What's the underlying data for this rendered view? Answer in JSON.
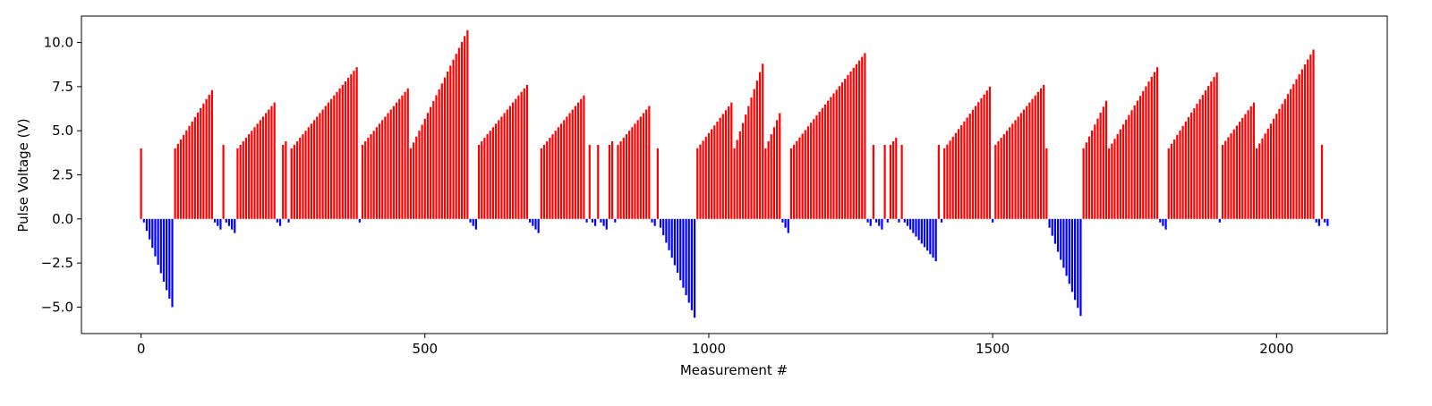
{
  "chart_data": {
    "type": "bar",
    "title": "",
    "xlabel": "Measurement #",
    "ylabel": "Pulse Voltage (V)",
    "xlim": [
      -105,
      2195
    ],
    "ylim": [
      -6.5,
      11.5
    ],
    "x_ticks": [
      0,
      500,
      1000,
      1500,
      2000
    ],
    "y_ticks": [
      -5.0,
      -2.5,
      0.0,
      2.5,
      5.0,
      7.5,
      10.0
    ],
    "x_tick_labels": [
      "0",
      "500",
      "1000",
      "1500",
      "2000"
    ],
    "y_tick_labels": [
      "−5.0",
      "−2.5",
      "0.0",
      "2.5",
      "5.0",
      "7.5",
      "10.0"
    ],
    "grid": false,
    "colors": {
      "positive": "#ff0000",
      "negative": "#0000ff",
      "axes": "#000000",
      "background": "#ffffff"
    },
    "bar_segments": [
      {
        "name": "pos-01",
        "x_start": 0,
        "x_end": 0,
        "step": 5,
        "v_start": 4.0,
        "v_end": 4.0
      },
      {
        "name": "neg-01",
        "x_start": 5,
        "x_end": 55,
        "step": 5,
        "v_start": -0.2,
        "v_end": -5.0
      },
      {
        "name": "pos-02",
        "x_start": 60,
        "x_end": 125,
        "step": 5,
        "v_start": 4.0,
        "v_end": 7.3
      },
      {
        "name": "neg-02",
        "x_start": 130,
        "x_end": 140,
        "step": 5,
        "v_start": -0.2,
        "v_end": -0.6
      },
      {
        "name": "pos-03",
        "x_start": 145,
        "x_end": 145,
        "step": 5,
        "v_start": 4.2,
        "v_end": 4.2
      },
      {
        "name": "neg-03",
        "x_start": 150,
        "x_end": 165,
        "step": 5,
        "v_start": -0.2,
        "v_end": -0.8
      },
      {
        "name": "pos-04",
        "x_start": 170,
        "x_end": 235,
        "step": 5,
        "v_start": 4.0,
        "v_end": 6.6
      },
      {
        "name": "neg-04",
        "x_start": 240,
        "x_end": 245,
        "step": 5,
        "v_start": -0.2,
        "v_end": -0.4
      },
      {
        "name": "pos-05",
        "x_start": 250,
        "x_end": 255,
        "step": 5,
        "v_start": 4.2,
        "v_end": 4.4
      },
      {
        "name": "neg-05",
        "x_start": 260,
        "x_end": 260,
        "step": 5,
        "v_start": -0.2,
        "v_end": -0.2
      },
      {
        "name": "pos-06",
        "x_start": 265,
        "x_end": 380,
        "step": 5,
        "v_start": 4.0,
        "v_end": 8.6
      },
      {
        "name": "neg-06",
        "x_start": 385,
        "x_end": 385,
        "step": 5,
        "v_start": -0.2,
        "v_end": -0.2
      },
      {
        "name": "pos-07",
        "x_start": 390,
        "x_end": 470,
        "step": 5,
        "v_start": 4.2,
        "v_end": 7.4
      },
      {
        "name": "pos-08",
        "x_start": 475,
        "x_end": 575,
        "step": 5,
        "v_start": 4.0,
        "v_end": 10.7
      },
      {
        "name": "neg-07",
        "x_start": 580,
        "x_end": 590,
        "step": 5,
        "v_start": -0.2,
        "v_end": -0.6
      },
      {
        "name": "pos-09",
        "x_start": 595,
        "x_end": 680,
        "step": 5,
        "v_start": 4.2,
        "v_end": 7.6
      },
      {
        "name": "neg-08",
        "x_start": 685,
        "x_end": 700,
        "step": 5,
        "v_start": -0.2,
        "v_end": -0.8
      },
      {
        "name": "pos-10",
        "x_start": 705,
        "x_end": 780,
        "step": 5,
        "v_start": 4.0,
        "v_end": 7.0
      },
      {
        "name": "neg-09",
        "x_start": 785,
        "x_end": 785,
        "step": 5,
        "v_start": -0.2,
        "v_end": -0.2
      },
      {
        "name": "pos-11",
        "x_start": 790,
        "x_end": 790,
        "step": 5,
        "v_start": 4.2,
        "v_end": 4.2
      },
      {
        "name": "neg-10",
        "x_start": 795,
        "x_end": 800,
        "step": 5,
        "v_start": -0.2,
        "v_end": -0.4
      },
      {
        "name": "pos-12",
        "x_start": 805,
        "x_end": 805,
        "step": 5,
        "v_start": 4.2,
        "v_end": 4.2
      },
      {
        "name": "neg-11",
        "x_start": 810,
        "x_end": 820,
        "step": 5,
        "v_start": -0.2,
        "v_end": -0.6
      },
      {
        "name": "pos-13",
        "x_start": 825,
        "x_end": 830,
        "step": 5,
        "v_start": 4.2,
        "v_end": 4.4
      },
      {
        "name": "neg-12",
        "x_start": 835,
        "x_end": 835,
        "step": 5,
        "v_start": -0.2,
        "v_end": -0.2
      },
      {
        "name": "pos-14",
        "x_start": 840,
        "x_end": 895,
        "step": 5,
        "v_start": 4.2,
        "v_end": 6.4
      },
      {
        "name": "neg-13",
        "x_start": 900,
        "x_end": 905,
        "step": 5,
        "v_start": -0.2,
        "v_end": -0.4
      },
      {
        "name": "pos-15",
        "x_start": 910,
        "x_end": 910,
        "step": 5,
        "v_start": 4.0,
        "v_end": 4.0
      },
      {
        "name": "neg-14",
        "x_start": 915,
        "x_end": 975,
        "step": 5,
        "v_start": -0.5,
        "v_end": -5.6
      },
      {
        "name": "pos-16",
        "x_start": 980,
        "x_end": 1040,
        "step": 5,
        "v_start": 4.0,
        "v_end": 6.6
      },
      {
        "name": "pos-17",
        "x_start": 1045,
        "x_end": 1095,
        "step": 5,
        "v_start": 4.0,
        "v_end": 8.8
      },
      {
        "name": "pos-18",
        "x_start": 1100,
        "x_end": 1125,
        "step": 5,
        "v_start": 4.0,
        "v_end": 6.0
      },
      {
        "name": "neg-15",
        "x_start": 1130,
        "x_end": 1140,
        "step": 5,
        "v_start": -0.2,
        "v_end": -0.8
      },
      {
        "name": "pos-19",
        "x_start": 1145,
        "x_end": 1275,
        "step": 5,
        "v_start": 4.0,
        "v_end": 9.4
      },
      {
        "name": "neg-16",
        "x_start": 1280,
        "x_end": 1285,
        "step": 5,
        "v_start": -0.2,
        "v_end": -0.4
      },
      {
        "name": "pos-20",
        "x_start": 1290,
        "x_end": 1290,
        "step": 5,
        "v_start": 4.2,
        "v_end": 4.2
      },
      {
        "name": "neg-17",
        "x_start": 1295,
        "x_end": 1305,
        "step": 5,
        "v_start": -0.2,
        "v_end": -0.6
      },
      {
        "name": "pos-21",
        "x_start": 1310,
        "x_end": 1310,
        "step": 5,
        "v_start": 4.2,
        "v_end": 4.2
      },
      {
        "name": "neg-18",
        "x_start": 1315,
        "x_end": 1315,
        "step": 5,
        "v_start": -0.2,
        "v_end": -0.2
      },
      {
        "name": "pos-22",
        "x_start": 1320,
        "x_end": 1330,
        "step": 5,
        "v_start": 4.2,
        "v_end": 4.6
      },
      {
        "name": "neg-19",
        "x_start": 1335,
        "x_end": 1335,
        "step": 5,
        "v_start": -0.2,
        "v_end": -0.2
      },
      {
        "name": "pos-23",
        "x_start": 1340,
        "x_end": 1340,
        "step": 5,
        "v_start": 4.2,
        "v_end": 4.2
      },
      {
        "name": "neg-20",
        "x_start": 1345,
        "x_end": 1400,
        "step": 5,
        "v_start": -0.2,
        "v_end": -2.4
      },
      {
        "name": "pos-24",
        "x_start": 1405,
        "x_end": 1405,
        "step": 5,
        "v_start": 4.2,
        "v_end": 4.2
      },
      {
        "name": "neg-21",
        "x_start": 1410,
        "x_end": 1410,
        "step": 5,
        "v_start": -0.2,
        "v_end": -0.2
      },
      {
        "name": "pos-25",
        "x_start": 1415,
        "x_end": 1495,
        "step": 5,
        "v_start": 4.0,
        "v_end": 7.5
      },
      {
        "name": "neg-22",
        "x_start": 1500,
        "x_end": 1500,
        "step": 5,
        "v_start": -0.2,
        "v_end": -0.2
      },
      {
        "name": "pos-26",
        "x_start": 1505,
        "x_end": 1590,
        "step": 5,
        "v_start": 4.2,
        "v_end": 7.6
      },
      {
        "name": "pos-27",
        "x_start": 1595,
        "x_end": 1595,
        "step": 5,
        "v_start": 4.0,
        "v_end": 4.0
      },
      {
        "name": "neg-23",
        "x_start": 1600,
        "x_end": 1655,
        "step": 5,
        "v_start": -0.5,
        "v_end": -5.5
      },
      {
        "name": "pos-28",
        "x_start": 1660,
        "x_end": 1700,
        "step": 5,
        "v_start": 4.0,
        "v_end": 6.7
      },
      {
        "name": "pos-29",
        "x_start": 1705,
        "x_end": 1790,
        "step": 5,
        "v_start": 4.0,
        "v_end": 8.6
      },
      {
        "name": "neg-24",
        "x_start": 1795,
        "x_end": 1805,
        "step": 5,
        "v_start": -0.2,
        "v_end": -0.6
      },
      {
        "name": "pos-30",
        "x_start": 1810,
        "x_end": 1895,
        "step": 5,
        "v_start": 4.0,
        "v_end": 8.3
      },
      {
        "name": "neg-25",
        "x_start": 1900,
        "x_end": 1900,
        "step": 5,
        "v_start": -0.2,
        "v_end": -0.2
      },
      {
        "name": "pos-31",
        "x_start": 1905,
        "x_end": 1960,
        "step": 5,
        "v_start": 4.2,
        "v_end": 6.6
      },
      {
        "name": "pos-32",
        "x_start": 1965,
        "x_end": 2065,
        "step": 5,
        "v_start": 4.0,
        "v_end": 9.6
      },
      {
        "name": "neg-26",
        "x_start": 2070,
        "x_end": 2075,
        "step": 5,
        "v_start": -0.2,
        "v_end": -0.4
      },
      {
        "name": "pos-33",
        "x_start": 2080,
        "x_end": 2080,
        "step": 5,
        "v_start": 4.2,
        "v_end": 4.2
      },
      {
        "name": "neg-27",
        "x_start": 2085,
        "x_end": 2090,
        "step": 5,
        "v_start": -0.2,
        "v_end": -0.4
      }
    ]
  }
}
